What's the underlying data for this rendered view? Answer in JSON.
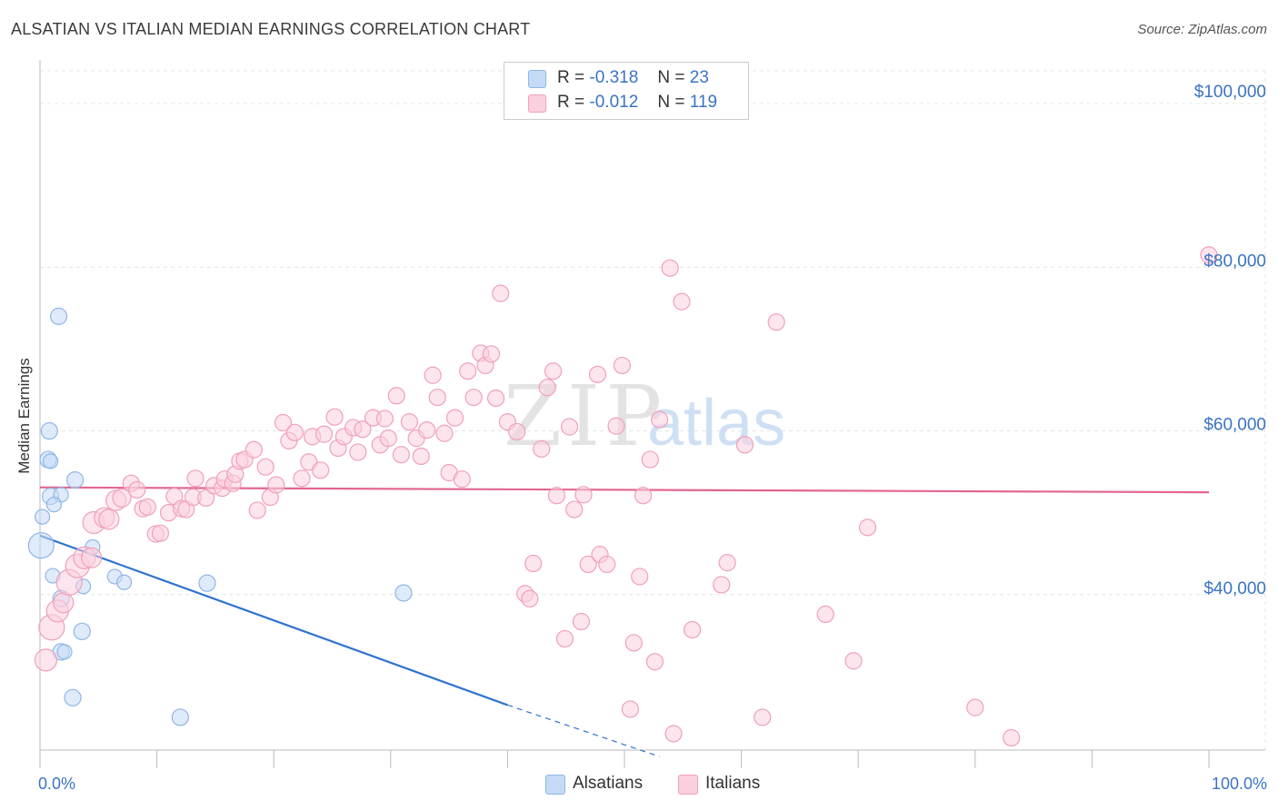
{
  "title": "ALSATIAN VS ITALIAN MEDIAN EARNINGS CORRELATION CHART",
  "source": "Source: ZipAtlas.com",
  "watermark": {
    "zip": "ZIP",
    "atlas": "atlas"
  },
  "legend": {
    "r_label": "R =",
    "n_label": "N =",
    "rows": [
      {
        "r": "-0.318",
        "n": "23",
        "color": "#8fb6e8",
        "fill": "#c5dbf5"
      },
      {
        "r": "-0.012",
        "n": "119",
        "color": "#f0a0b8",
        "fill": "#fbd0de"
      }
    ]
  },
  "bottom_legend": [
    {
      "label": "Alsatians",
      "color": "#8fb6e8",
      "fill": "#c5dbf5"
    },
    {
      "label": "Italians",
      "color": "#f0a0b8",
      "fill": "#fbd0de"
    }
  ],
  "chart_data": {
    "type": "scatter",
    "title": "ALSATIAN VS ITALIAN MEDIAN EARNINGS CORRELATION CHART",
    "xlabel": "",
    "ylabel": "Median Earnings",
    "xlim": [
      0,
      100
    ],
    "ylim": [
      21000,
      104000
    ],
    "x_tick_labels": {
      "left": "0.0%",
      "right": "100.0%"
    },
    "x_minor_ticks": [
      0,
      10,
      20,
      30,
      40,
      50,
      60,
      70,
      80,
      90,
      100
    ],
    "y_ticks": [
      {
        "value": 40000,
        "label": "$40,000"
      },
      {
        "value": 60000,
        "label": "$60,000"
      },
      {
        "value": 80000,
        "label": "$80,000"
      },
      {
        "value": 100000,
        "label": "$100,000"
      }
    ],
    "series": [
      {
        "name": "Alsatians",
        "color": "#5b93d8",
        "fill": "#c5dbf5",
        "stroke": "#8fb6e8",
        "trend": {
          "x0": 0,
          "y0": 47200,
          "x1": 40,
          "y1": 26500,
          "x_dash_end": 53,
          "y_dash_end": 20200,
          "color": "#2f73d0"
        },
        "points": [
          [
            0.1,
            46000,
            14
          ],
          [
            1.6,
            74000,
            9
          ],
          [
            0.8,
            60000,
            9
          ],
          [
            0.7,
            56500,
            9
          ],
          [
            0.9,
            52000,
            9
          ],
          [
            1.8,
            52200,
            8
          ],
          [
            0.2,
            49500,
            8
          ],
          [
            1.2,
            51000,
            8
          ],
          [
            3.0,
            54000,
            9
          ],
          [
            4.5,
            45800,
            8
          ],
          [
            1.1,
            42300,
            8
          ],
          [
            3.7,
            41000,
            8
          ],
          [
            6.4,
            42200,
            8
          ],
          [
            7.2,
            41500,
            8
          ],
          [
            14.3,
            41400,
            9
          ],
          [
            1.8,
            39500,
            9
          ],
          [
            3.6,
            35500,
            9
          ],
          [
            1.8,
            33000,
            9
          ],
          [
            2.1,
            33000,
            8
          ],
          [
            2.8,
            27400,
            9
          ],
          [
            12.0,
            25000,
            9
          ],
          [
            31.1,
            40200,
            9
          ],
          [
            0.9,
            56300,
            8
          ]
        ]
      },
      {
        "name": "Italians",
        "color": "#e3668e",
        "fill": "#fbd0de",
        "stroke": "#f0a0b8",
        "trend": {
          "x0": 0,
          "y0": 53100,
          "x1": 100,
          "y1": 52500,
          "color": "#e3668e"
        },
        "points": [
          [
            0.5,
            32000,
            12
          ],
          [
            1.0,
            36000,
            14
          ],
          [
            1.5,
            38000,
            12
          ],
          [
            2.0,
            39000,
            11
          ],
          [
            2.5,
            41500,
            14
          ],
          [
            3.2,
            43500,
            13
          ],
          [
            3.8,
            44500,
            12
          ],
          [
            4.4,
            44500,
            11
          ],
          [
            4.6,
            48800,
            12
          ],
          [
            5.5,
            49400,
            11
          ],
          [
            5.9,
            49200,
            11
          ],
          [
            6.5,
            51500,
            11
          ],
          [
            7.0,
            51800,
            10
          ],
          [
            7.8,
            53600,
            9
          ],
          [
            8.3,
            52800,
            9
          ],
          [
            8.8,
            50500,
            9
          ],
          [
            9.2,
            50700,
            9
          ],
          [
            9.9,
            47400,
            9
          ],
          [
            10.3,
            47500,
            9
          ],
          [
            11.0,
            50000,
            9
          ],
          [
            11.5,
            52000,
            9
          ],
          [
            12.1,
            50500,
            9
          ],
          [
            12.5,
            50400,
            9
          ],
          [
            13.1,
            51900,
            9
          ],
          [
            13.3,
            54200,
            9
          ],
          [
            14.2,
            51800,
            9
          ],
          [
            14.9,
            53300,
            9
          ],
          [
            15.6,
            53000,
            9
          ],
          [
            15.8,
            54100,
            9
          ],
          [
            16.5,
            53600,
            9
          ],
          [
            16.7,
            54700,
            9
          ],
          [
            17.1,
            56300,
            9
          ],
          [
            17.5,
            56500,
            9
          ],
          [
            18.3,
            57700,
            9
          ],
          [
            18.6,
            50300,
            9
          ],
          [
            19.3,
            55600,
            9
          ],
          [
            19.7,
            51900,
            9
          ],
          [
            20.2,
            53400,
            9
          ],
          [
            20.8,
            61000,
            9
          ],
          [
            21.3,
            58800,
            9
          ],
          [
            21.8,
            59800,
            9
          ],
          [
            22.4,
            54200,
            9
          ],
          [
            23.0,
            56200,
            9
          ],
          [
            23.3,
            59300,
            9
          ],
          [
            24.0,
            55200,
            9
          ],
          [
            24.3,
            59600,
            9
          ],
          [
            25.2,
            61700,
            9
          ],
          [
            25.5,
            57900,
            9
          ],
          [
            26.0,
            59300,
            9
          ],
          [
            26.8,
            60400,
            9
          ],
          [
            27.2,
            57400,
            9
          ],
          [
            27.6,
            60200,
            9
          ],
          [
            28.5,
            61600,
            9
          ],
          [
            29.1,
            58300,
            9
          ],
          [
            29.5,
            61500,
            9
          ],
          [
            29.8,
            59100,
            9
          ],
          [
            30.5,
            64300,
            9
          ],
          [
            30.9,
            57100,
            9
          ],
          [
            31.6,
            61100,
            9
          ],
          [
            32.2,
            59100,
            9
          ],
          [
            32.6,
            56900,
            9
          ],
          [
            33.1,
            60100,
            9
          ],
          [
            33.6,
            66800,
            9
          ],
          [
            34.0,
            64100,
            9
          ],
          [
            34.6,
            59700,
            9
          ],
          [
            35.0,
            54900,
            9
          ],
          [
            35.5,
            61600,
            9
          ],
          [
            36.1,
            54100,
            9
          ],
          [
            36.6,
            67300,
            9
          ],
          [
            37.1,
            64100,
            9
          ],
          [
            37.7,
            69500,
            9
          ],
          [
            38.1,
            68000,
            9
          ],
          [
            38.6,
            69400,
            9
          ],
          [
            39.0,
            64000,
            9
          ],
          [
            39.4,
            76800,
            9
          ],
          [
            40.0,
            61100,
            9
          ],
          [
            40.8,
            59900,
            9
          ],
          [
            41.5,
            40100,
            9
          ],
          [
            41.9,
            39500,
            9
          ],
          [
            42.2,
            43800,
            9
          ],
          [
            42.9,
            57800,
            9
          ],
          [
            43.4,
            65300,
            9
          ],
          [
            43.9,
            67300,
            9
          ],
          [
            44.2,
            52100,
            9
          ],
          [
            44.9,
            34600,
            9
          ],
          [
            45.3,
            60500,
            9
          ],
          [
            45.7,
            50400,
            9
          ],
          [
            46.3,
            36700,
            9
          ],
          [
            46.5,
            52200,
            9
          ],
          [
            46.9,
            43700,
            9
          ],
          [
            47.7,
            66900,
            9
          ],
          [
            47.9,
            44900,
            9
          ],
          [
            48.5,
            43700,
            9
          ],
          [
            49.3,
            60600,
            9
          ],
          [
            49.8,
            68000,
            9
          ],
          [
            50.5,
            26000,
            9
          ],
          [
            50.8,
            34100,
            9
          ],
          [
            51.3,
            42200,
            9
          ],
          [
            51.6,
            52100,
            9
          ],
          [
            52.2,
            56500,
            9
          ],
          [
            52.6,
            31800,
            9
          ],
          [
            53.0,
            61400,
            9
          ],
          [
            53.9,
            79900,
            9
          ],
          [
            54.2,
            23000,
            9
          ],
          [
            54.9,
            75800,
            9
          ],
          [
            55.8,
            35700,
            9
          ],
          [
            58.3,
            41200,
            9
          ],
          [
            58.8,
            43900,
            9
          ],
          [
            60.3,
            58300,
            9
          ],
          [
            61.8,
            25000,
            9
          ],
          [
            63.0,
            73300,
            9
          ],
          [
            67.2,
            37600,
            9
          ],
          [
            69.6,
            31900,
            9
          ],
          [
            70.8,
            48200,
            9
          ],
          [
            80.0,
            26200,
            9
          ],
          [
            83.1,
            22500,
            9
          ],
          [
            100.0,
            81500,
            9
          ]
        ]
      }
    ]
  }
}
